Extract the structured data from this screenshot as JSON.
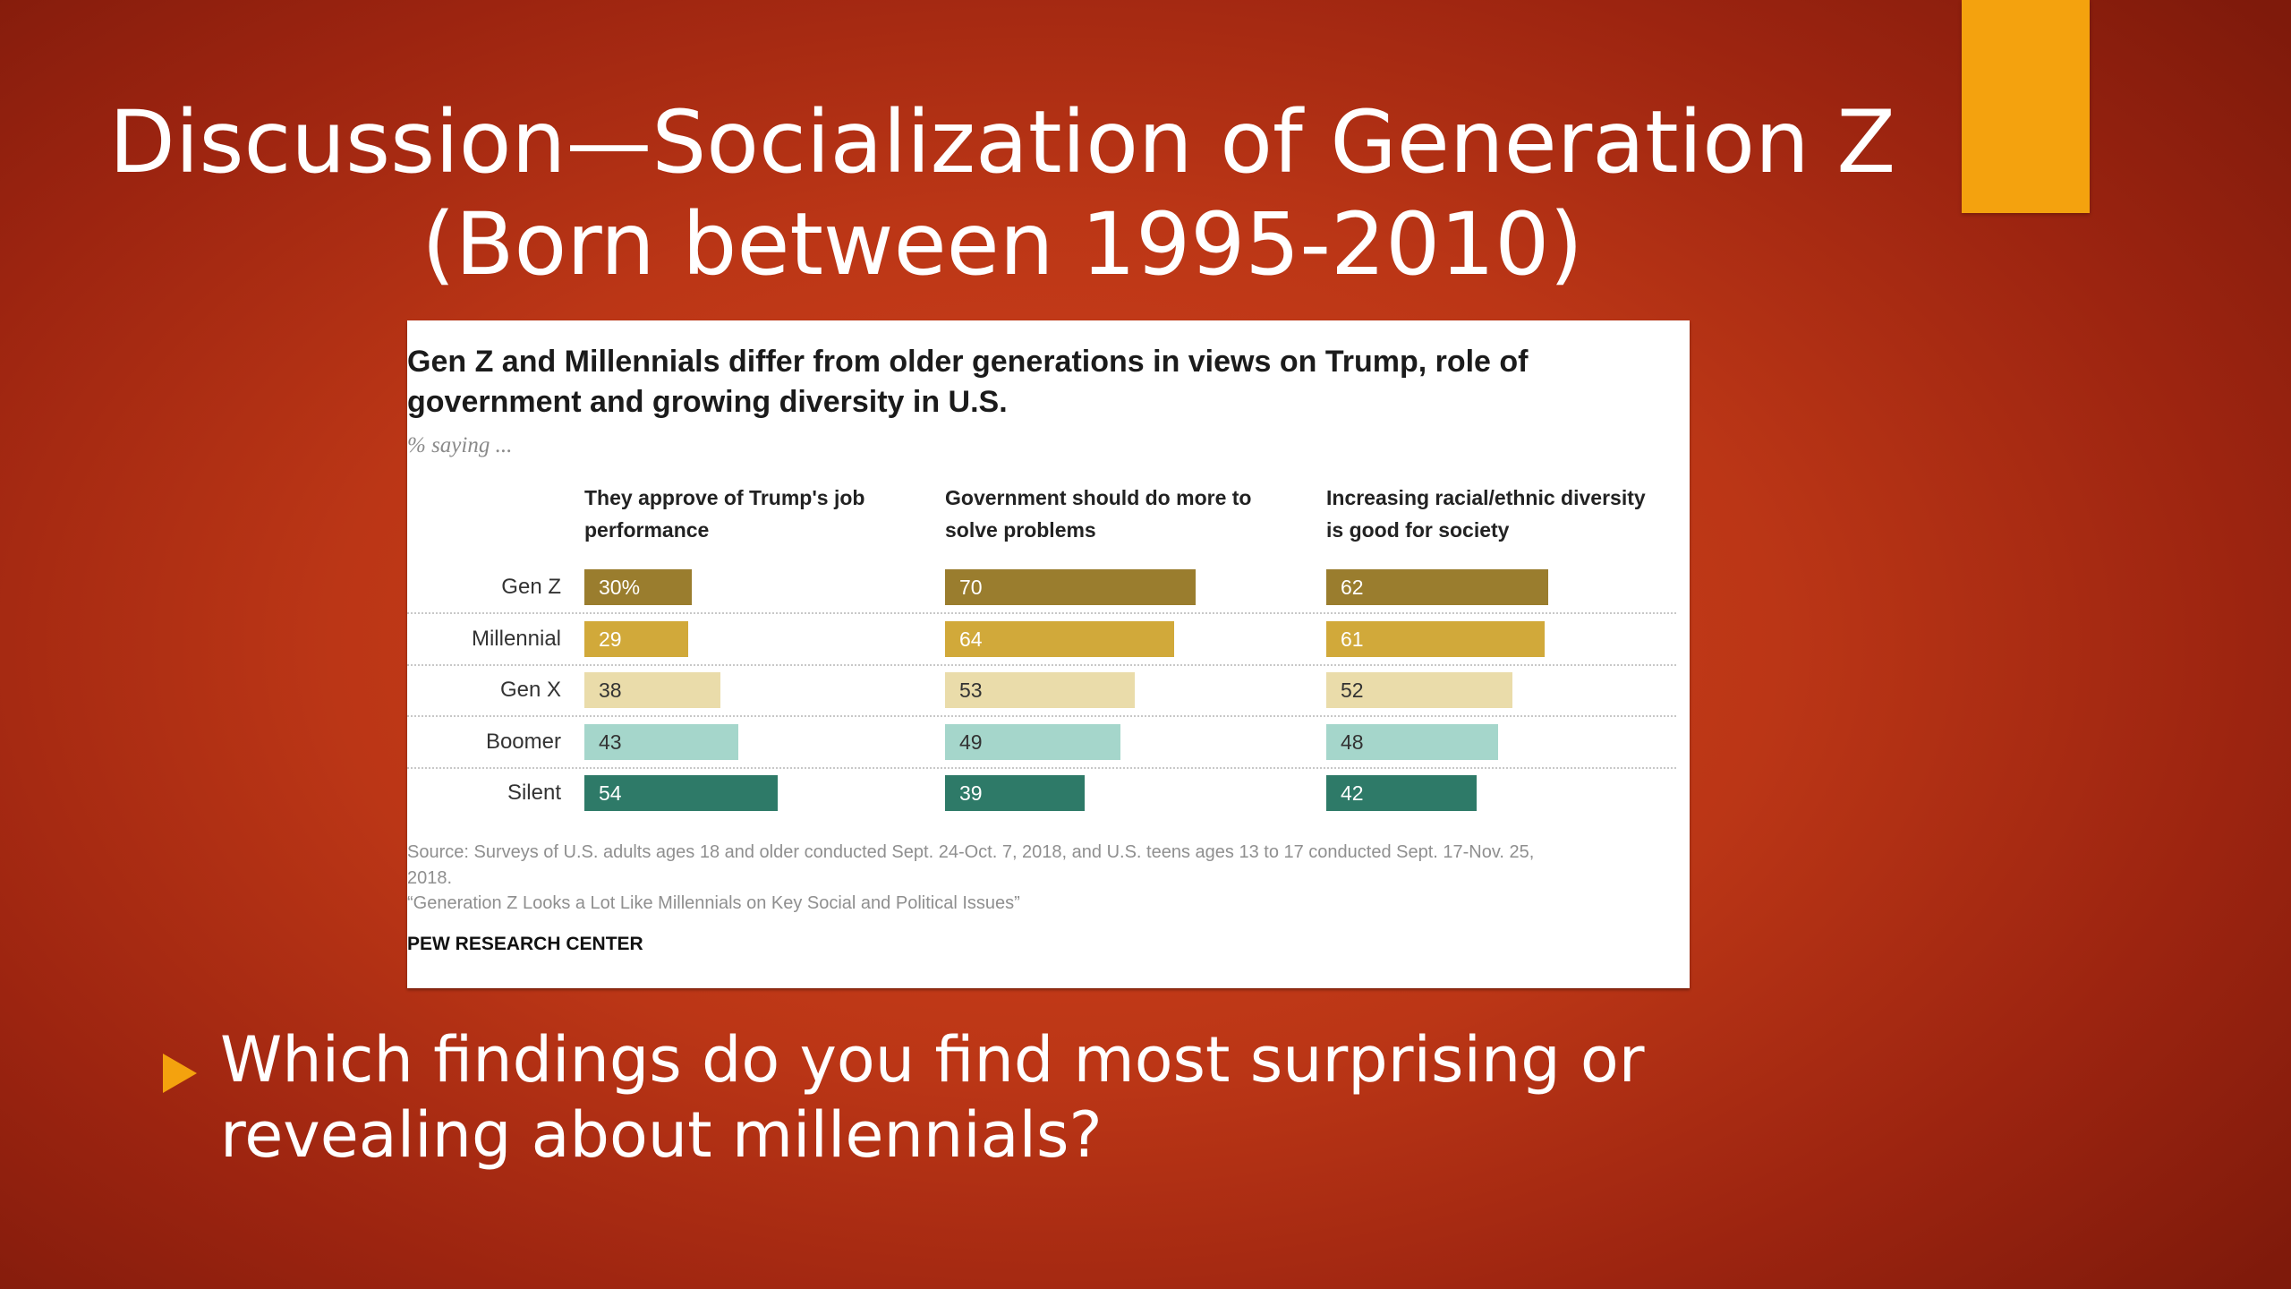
{
  "slide": {
    "title_lines": [
      "Discussion—Socialization of Generation Z",
      "(Born between 1995-2010)"
    ],
    "bullet_lines": [
      "Which findings do you find most surprising or",
      "revealing about millennials?"
    ],
    "colors": {
      "background": "#c23a18",
      "accent_block": "#f4a20e",
      "bullet_marker": "#f4a20e",
      "text": "#ffffff"
    },
    "icons": {
      "bullet": "triangle-bullet-icon"
    }
  },
  "figure": {
    "headline_lines": [
      "Gen Z and Millennials differ from older generations in views on Trump, role of",
      "government and growing diversity in U.S."
    ],
    "subhead": "% saying ...",
    "source_lines": [
      "Source: Surveys of U.S. adults ages 18 and older conducted Sept. 24-Oct. 7, 2018, and U.S. teens ages 13 to 17 conducted Sept. 17-Nov. 25,",
      "2018."
    ],
    "caption": "“Generation Z Looks a Lot Like Millennials on Key Social and Political Issues”",
    "org": "PEW RESEARCH CENTER"
  },
  "chart_data": {
    "type": "bar",
    "orientation": "horizontal",
    "categories": [
      "Gen Z",
      "Millennial",
      "Gen X",
      "Boomer",
      "Silent"
    ],
    "panels": [
      {
        "title_lines": [
          "They approve of Trump's job",
          "performance"
        ],
        "values": [
          30,
          29,
          38,
          43,
          54
        ],
        "labels": [
          "30%",
          "29",
          "38",
          "43",
          "54"
        ]
      },
      {
        "title_lines": [
          "Government should do more to",
          "solve problems"
        ],
        "values": [
          70,
          64,
          53,
          49,
          39
        ],
        "labels": [
          "70",
          "64",
          "53",
          "49",
          "39"
        ]
      },
      {
        "title_lines": [
          "Increasing racial/ethnic diversity",
          "is good for society"
        ],
        "values": [
          62,
          61,
          52,
          48,
          42
        ],
        "labels": [
          "62",
          "61",
          "52",
          "48",
          "42"
        ]
      }
    ],
    "category_colors": [
      "#9a7d2e",
      "#d1a93a",
      "#eadcaa",
      "#a5d6cb",
      "#2e7a68"
    ],
    "label_colors": [
      "#ffffff",
      "#ffffff",
      "#333333",
      "#333333",
      "#ffffff"
    ],
    "xlim": [
      0,
      100
    ],
    "grid": false,
    "legend": "none"
  }
}
